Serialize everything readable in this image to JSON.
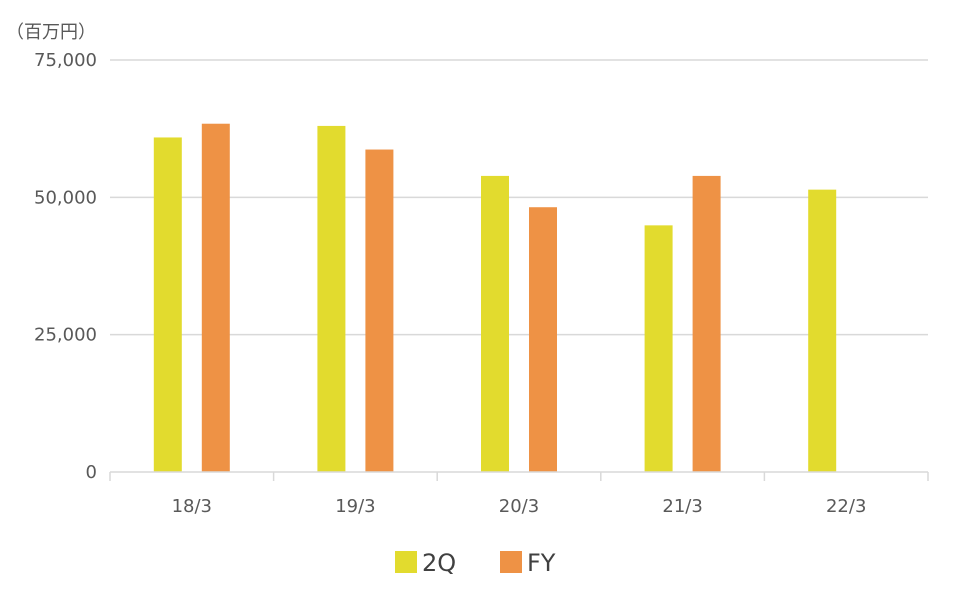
{
  "chart_data": {
    "type": "bar",
    "unit_label": "（百万円）",
    "categories": [
      "18/3",
      "19/3",
      "20/3",
      "21/3",
      "22/3"
    ],
    "series": [
      {
        "name": "2Q",
        "color": "#E2DB2E",
        "values": [
          60900,
          63000,
          53900,
          44900,
          51400
        ]
      },
      {
        "name": "FY",
        "color": "#EE9245",
        "values": [
          63400,
          58700,
          48200,
          53900,
          null
        ]
      }
    ],
    "ylim": [
      0,
      75000
    ],
    "yticks": [
      0,
      25000,
      50000,
      75000
    ],
    "ytick_labels": [
      "0",
      "25,000",
      "50,000",
      "75,000"
    ],
    "grid": true,
    "gridline_color": "#D9D9D9",
    "legend_position": "bottom"
  }
}
